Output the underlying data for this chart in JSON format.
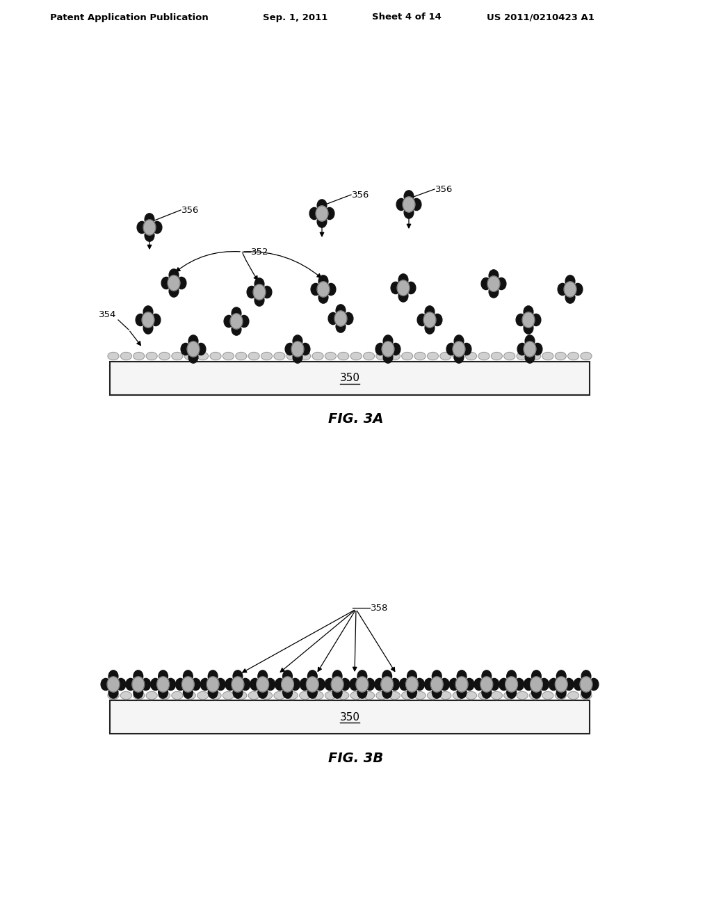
{
  "bg_color": "#ffffff",
  "header_text": "Patent Application Publication",
  "header_date": "Sep. 1, 2011",
  "header_sheet": "Sheet 4 of 14",
  "header_patent": "US 2011/0210423 A1",
  "fig3a_label": "FIG. 3A",
  "fig3b_label": "FIG. 3B",
  "label_350": "350",
  "label_352": "352",
  "label_354": "354",
  "label_356": "356",
  "label_358": "358",
  "dark_color": "#111111",
  "gray_color": "#b0b0b0",
  "light_gray": "#d0d0d0",
  "substrate_fill": "#f5f5f5",
  "substrate_edge": "#222222"
}
